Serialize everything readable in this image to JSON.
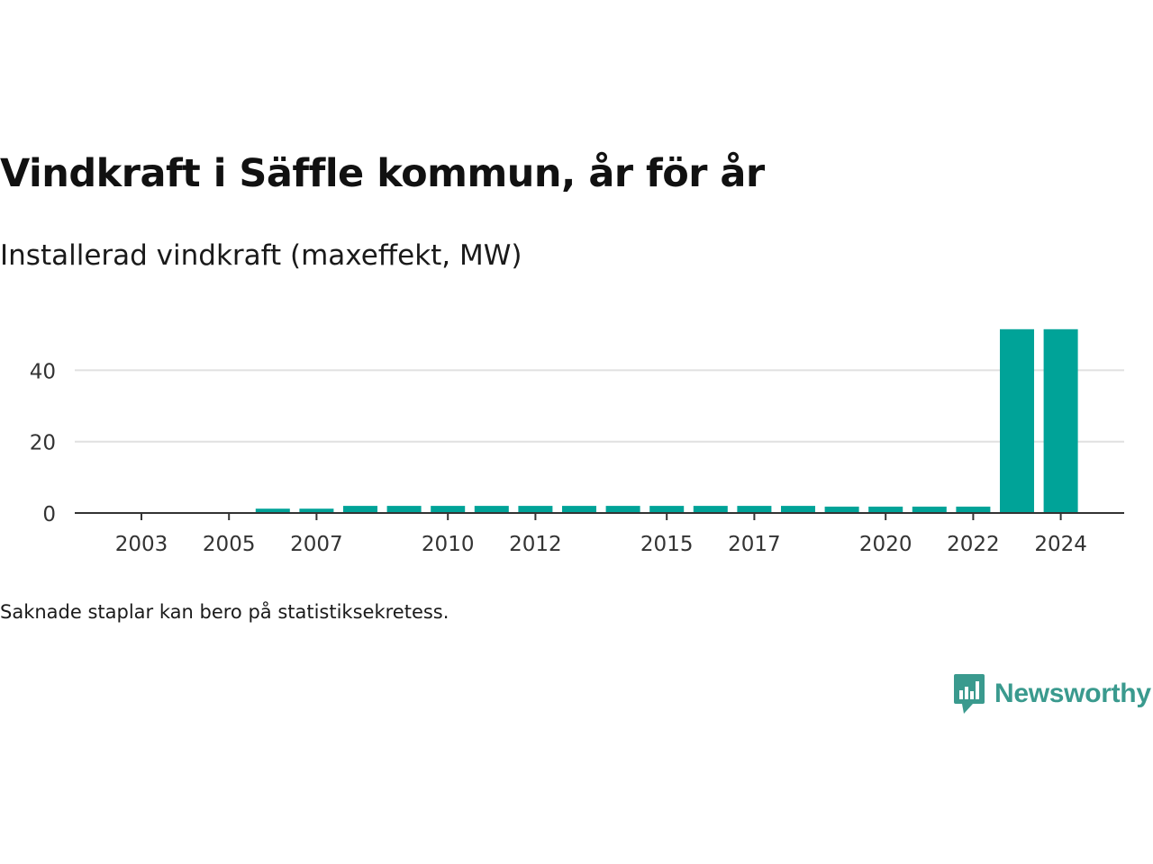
{
  "title": "Vindkraft i Säffle kommun, år för år",
  "subtitle": "Installerad vindkraft (maxeffekt, MW)",
  "footnote": "Saknade staplar kan bero på statistiksekretess.",
  "brand": {
    "name": "Newsworthy",
    "icon": "bar-chart-speech-bubble-icon",
    "color": "#3a9a8e"
  },
  "chart_data": {
    "type": "bar",
    "categories": [
      "2003",
      "2004",
      "2005",
      "2006",
      "2007",
      "2008",
      "2009",
      "2010",
      "2011",
      "2012",
      "2013",
      "2014",
      "2015",
      "2016",
      "2017",
      "2018",
      "2019",
      "2020",
      "2021",
      "2022",
      "2023",
      "2024"
    ],
    "values": [
      0,
      0,
      0,
      1.2,
      1.2,
      2.0,
      2.0,
      2.0,
      2.0,
      2.0,
      2.0,
      2.0,
      2.0,
      2.0,
      2.0,
      2.0,
      1.8,
      1.8,
      1.8,
      1.8,
      51.5,
      51.5
    ],
    "x_tick_labels": [
      "2003",
      "2005",
      "2007",
      "2010",
      "2012",
      "2015",
      "2017",
      "2020",
      "2022",
      "2024"
    ],
    "y_ticks": [
      0,
      20,
      40
    ],
    "ylim": [
      0,
      52
    ],
    "grid": "horizontal",
    "bar_color": "#00a398",
    "grid_color": "#e0e0e0",
    "axis_color": "#333333"
  }
}
